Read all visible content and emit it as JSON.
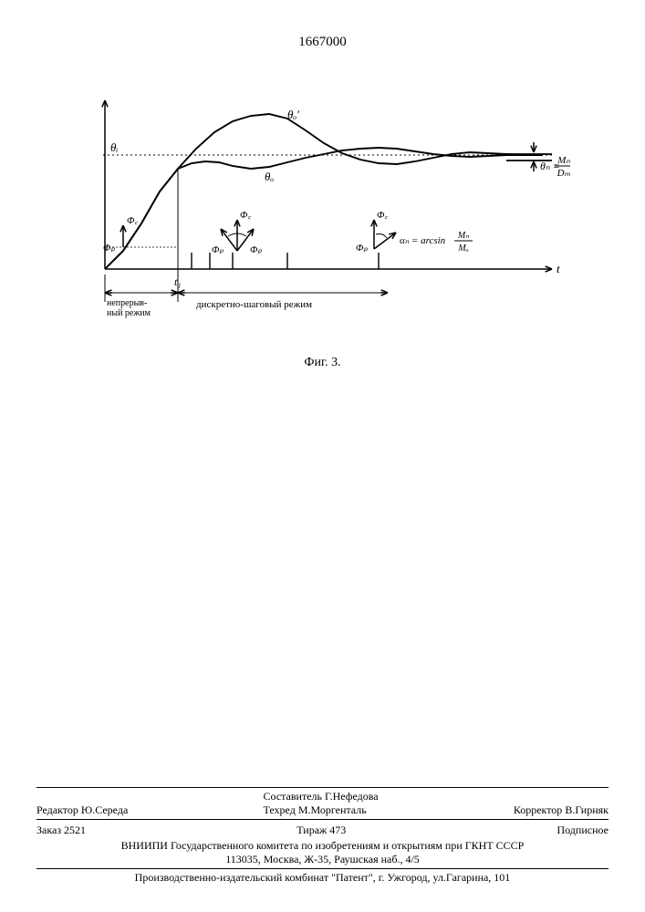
{
  "page_number": "1667000",
  "figure": {
    "caption": "Фиг. 3.",
    "x_axis_label": "t",
    "t1_label": "t₁",
    "mode_left": "непрерыв-\nный режим",
    "mode_right": "дискретно-шаговый режим",
    "theta_i": "θᵢ",
    "theta_o": "θₒ",
    "theta_o_prime": "θₒ′",
    "theta_n": "θₙ",
    "theta_n_formula": "Mₙ / Dₘ",
    "alpha_formula": "αₙ = arcsin Mₙ / Mₒ",
    "phi_p": "Φₚ",
    "phi_c": "Φ꜀",
    "colors": {
      "line": "#000000",
      "background": "#ffffff"
    },
    "plot": {
      "xlim": [
        0,
        480
      ],
      "ylim": [
        0,
        180
      ],
      "settle_level_y": 55,
      "t1_x": 80,
      "impulse_x": [
        95,
        115,
        140,
        200,
        300
      ],
      "impulse_height": 18,
      "curve_theta_o_prime": [
        [
          0,
          180
        ],
        [
          20,
          160
        ],
        [
          40,
          130
        ],
        [
          60,
          95
        ],
        [
          80,
          70
        ],
        [
          100,
          48
        ],
        [
          120,
          30
        ],
        [
          140,
          18
        ],
        [
          160,
          12
        ],
        [
          180,
          10
        ],
        [
          200,
          15
        ],
        [
          220,
          28
        ],
        [
          240,
          42
        ],
        [
          260,
          53
        ],
        [
          280,
          60
        ],
        [
          300,
          64
        ],
        [
          320,
          65
        ],
        [
          340,
          62
        ],
        [
          360,
          58
        ],
        [
          380,
          54
        ],
        [
          400,
          52
        ],
        [
          420,
          53
        ],
        [
          440,
          54
        ],
        [
          460,
          55
        ],
        [
          480,
          55
        ]
      ],
      "curve_theta_o": [
        [
          0,
          180
        ],
        [
          20,
          160
        ],
        [
          40,
          130
        ],
        [
          60,
          95
        ],
        [
          80,
          70
        ],
        [
          95,
          64
        ],
        [
          110,
          62
        ],
        [
          125,
          63
        ],
        [
          140,
          67
        ],
        [
          160,
          70
        ],
        [
          180,
          68
        ],
        [
          200,
          63
        ],
        [
          220,
          58
        ],
        [
          240,
          54
        ],
        [
          260,
          50
        ],
        [
          280,
          48
        ],
        [
          300,
          47
        ],
        [
          320,
          48
        ],
        [
          340,
          51
        ],
        [
          360,
          54
        ],
        [
          380,
          56
        ],
        [
          400,
          57
        ],
        [
          420,
          56
        ],
        [
          440,
          55
        ],
        [
          460,
          55
        ],
        [
          480,
          55
        ]
      ],
      "line_width": 1.5
    }
  },
  "footer": {
    "editor_label": "Редактор",
    "editor_name": "Ю.Середа",
    "compiler_label": "Составитель",
    "compiler_name": "Г.Нефедова",
    "techred_label": "Техред",
    "techred_name": "М.Моргенталь",
    "corrector_label": "Корректор",
    "corrector_name": "В.Гирняк",
    "order": "Заказ 2521",
    "tirage": "Тираж 473",
    "subscr": "Подписное",
    "org_line1": "ВНИИПИ Государственного комитета по изобретениям и открытиям при ГКНТ СССР",
    "org_line2": "113035, Москва, Ж-35, Раушская наб., 4/5",
    "printer": "Производственно-издательский комбинат \"Патент\", г. Ужгород, ул.Гагарина, 101"
  }
}
